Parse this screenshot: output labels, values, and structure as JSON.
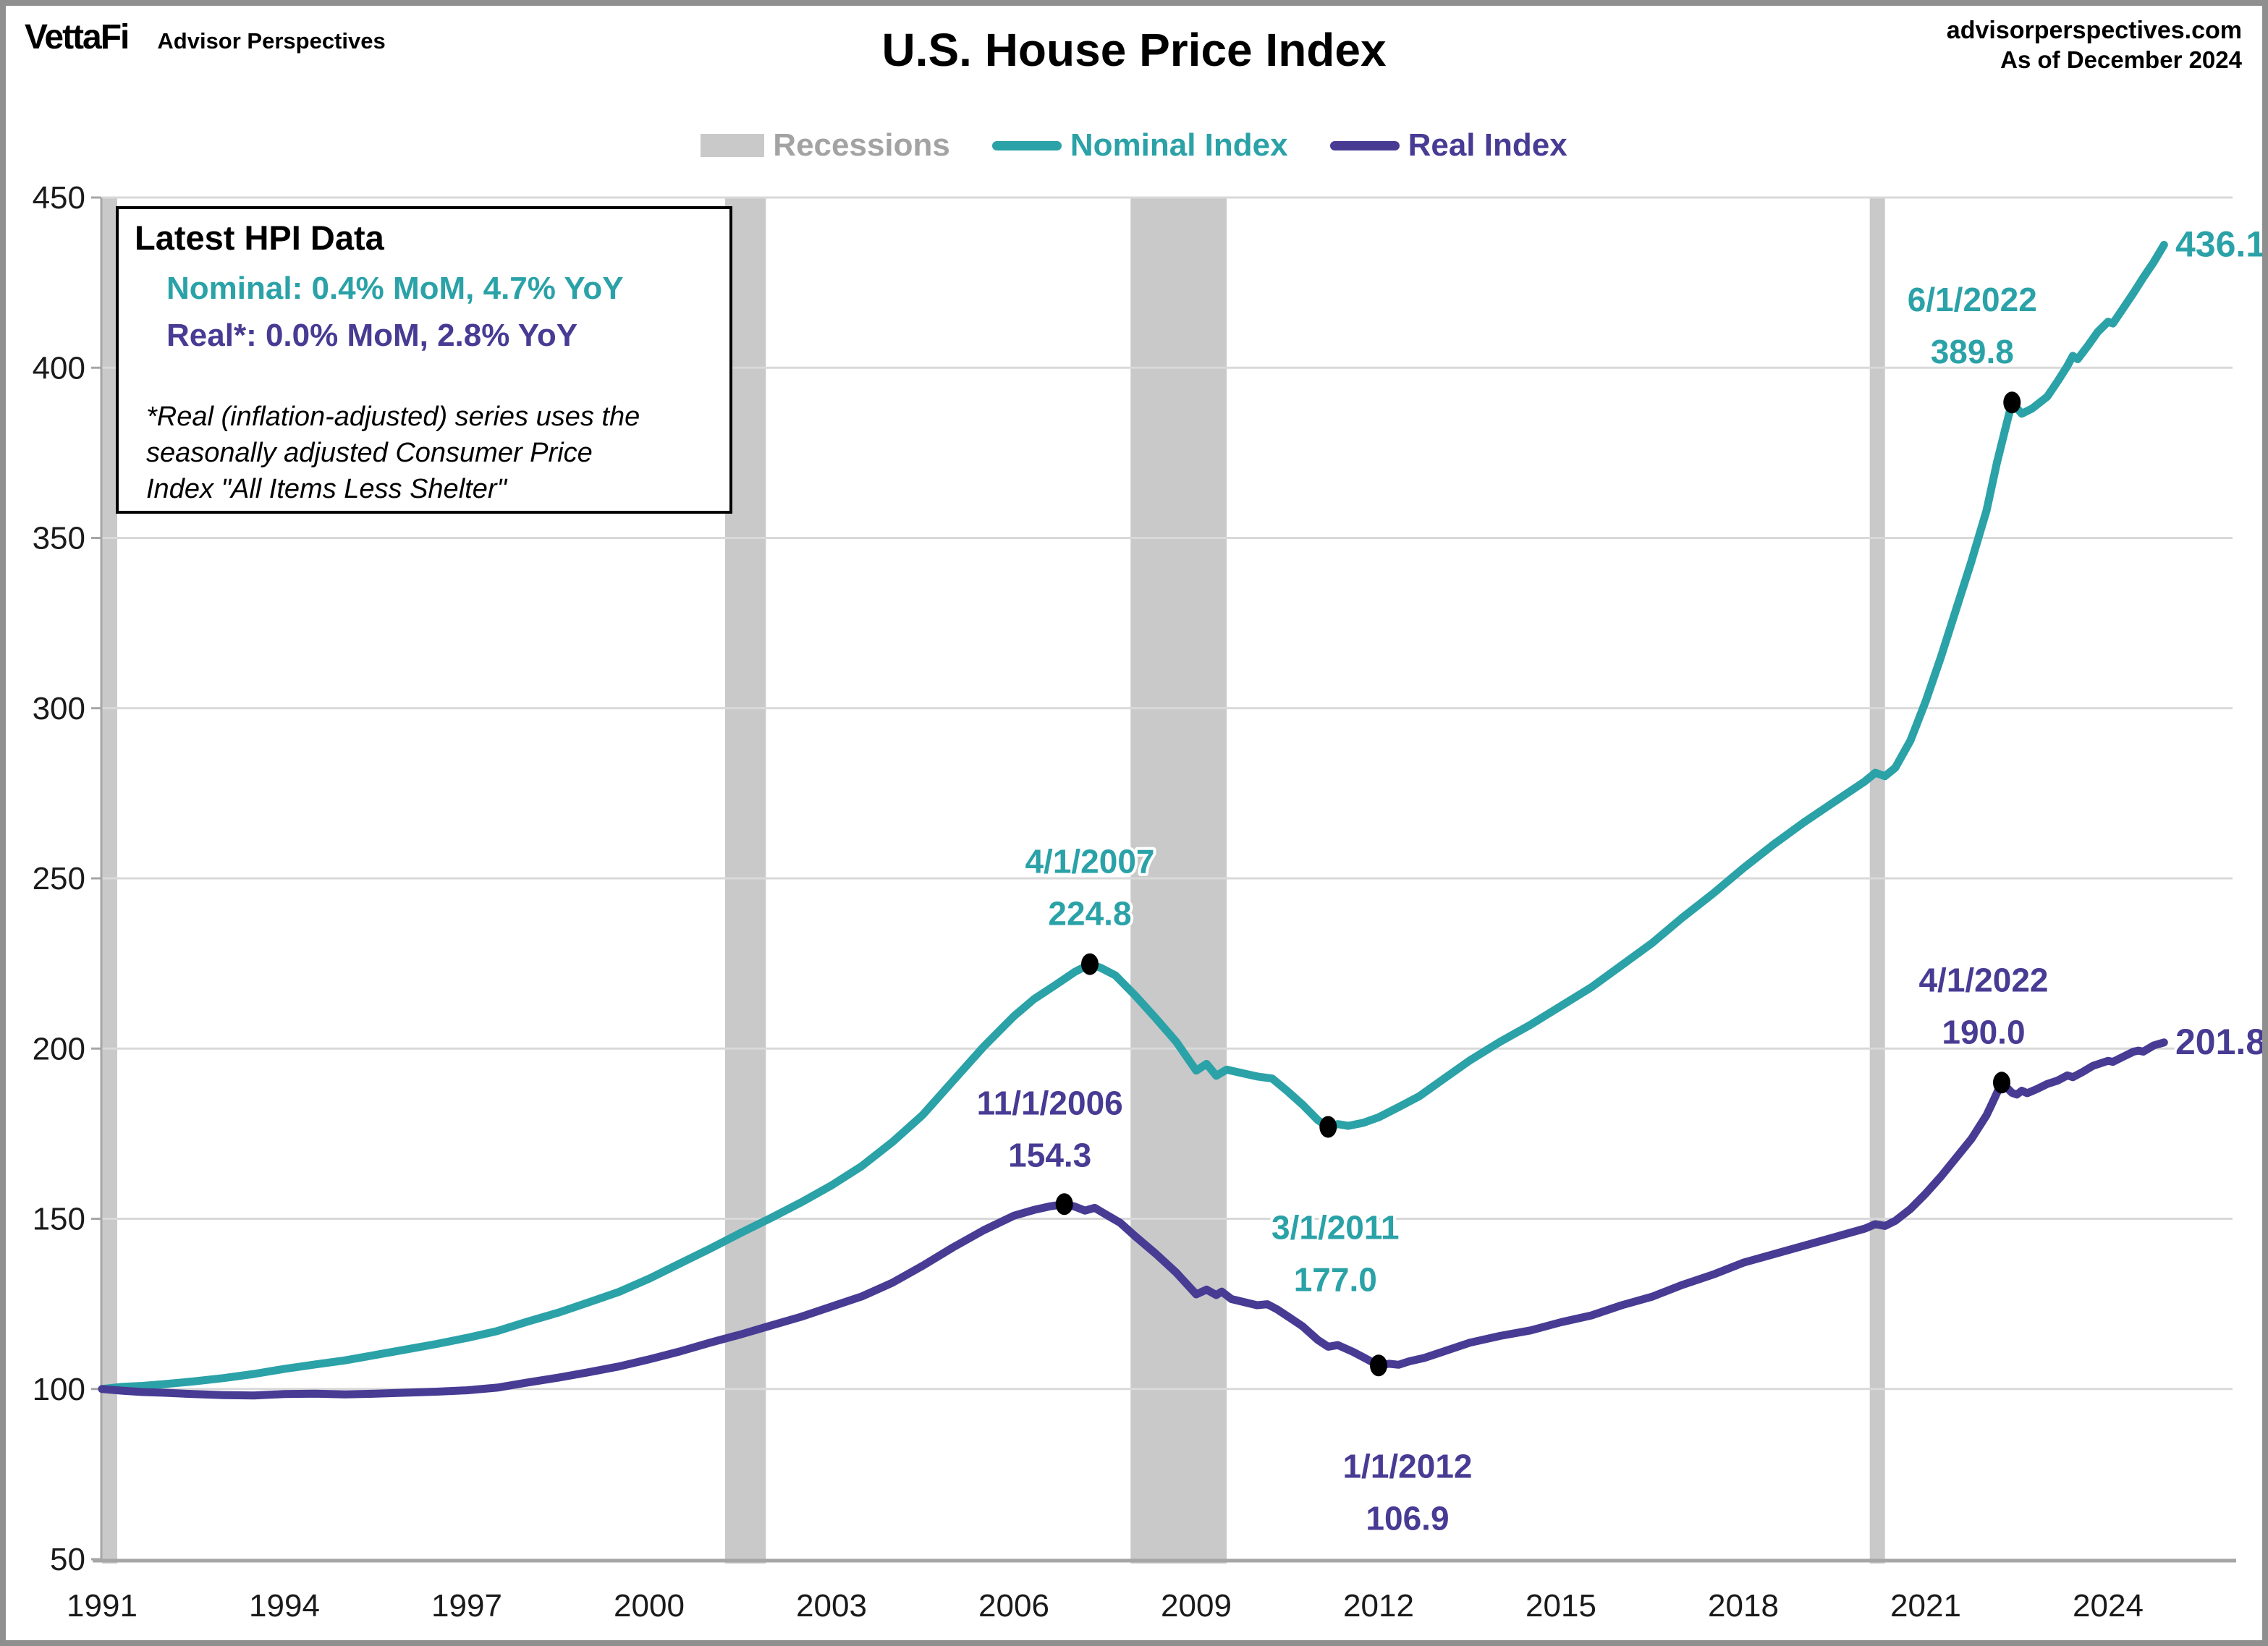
{
  "header": {
    "brand": "VettaFi",
    "brand_sub": "Advisor Perspectives",
    "title": "U.S. House Price Index",
    "source_line1": "advisorperspectives.com",
    "source_line2": "As of December 2024"
  },
  "legend": [
    {
      "label": "Recessions",
      "type": "band",
      "color": "#c9c9c9",
      "text_color": "#a3a3a3"
    },
    {
      "label": "Nominal Index",
      "type": "line",
      "color": "#2aa2a7",
      "text_color": "#2aa2a7"
    },
    {
      "label": "Real Index",
      "type": "line",
      "color": "#473b94",
      "text_color": "#473b94"
    }
  ],
  "info_box": {
    "title": "Latest HPI Data",
    "nominal_line": "Nominal:  0.4% MoM, 4.7% YoY",
    "real_line": "Real*:  0.0% MoM, 2.8% YoY",
    "footnote_line1": "*Real (inflation-adjusted) series uses the",
    "footnote_line2": "seasonally adjusted Consumer Price",
    "footnote_line3": "Index \"All Items Less Shelter\""
  },
  "chart_data": {
    "type": "line",
    "title": "U.S. House Price Index",
    "xlabel": "",
    "ylabel": "",
    "x_axis": {
      "range": [
        1991,
        2024.9167
      ],
      "ticks": [
        1991,
        1994,
        1997,
        2000,
        2003,
        2006,
        2009,
        2012,
        2015,
        2018,
        2021,
        2024
      ]
    },
    "y_axis": {
      "range": [
        50,
        450
      ],
      "ticks": [
        50,
        100,
        150,
        200,
        250,
        300,
        350,
        400,
        450
      ],
      "gridlines": true
    },
    "colors": {
      "grid": "#d9d9d9",
      "axis": "#a6a6a6",
      "recession_band": "#c9c9c9",
      "tick_label": "#1a1a1a",
      "marker": "#000000"
    },
    "recessions": [
      {
        "start": 1991.0,
        "end": 1991.25
      },
      {
        "start": 2001.25,
        "end": 2001.92
      },
      {
        "start": 2007.92,
        "end": 2009.5
      },
      {
        "start": 2020.08,
        "end": 2020.33
      }
    ],
    "series": [
      {
        "name": "Nominal Index",
        "color": "#2aa2a7",
        "points": [
          [
            1991.0,
            100
          ],
          [
            1991.33,
            100.6
          ],
          [
            1991.67,
            100.9
          ],
          [
            1992.0,
            101.4
          ],
          [
            1992.5,
            102.2
          ],
          [
            1993.0,
            103.2
          ],
          [
            1993.5,
            104.4
          ],
          [
            1994.0,
            105.9
          ],
          [
            1994.5,
            107.2
          ],
          [
            1995.0,
            108.4
          ],
          [
            1995.5,
            110.0
          ],
          [
            1996.0,
            111.6
          ],
          [
            1996.5,
            113.2
          ],
          [
            1997.0,
            115.0
          ],
          [
            1997.5,
            117.0
          ],
          [
            1998.0,
            119.8
          ],
          [
            1998.5,
            122.4
          ],
          [
            1999.0,
            125.4
          ],
          [
            1999.5,
            128.5
          ],
          [
            2000.0,
            132.4
          ],
          [
            2000.5,
            136.8
          ],
          [
            2001.0,
            141.2
          ],
          [
            2001.5,
            145.8
          ],
          [
            2002.0,
            150.2
          ],
          [
            2002.5,
            154.8
          ],
          [
            2003.0,
            159.8
          ],
          [
            2003.5,
            165.5
          ],
          [
            2004.0,
            172.5
          ],
          [
            2004.5,
            180.5
          ],
          [
            2005.0,
            190.5
          ],
          [
            2005.5,
            200.5
          ],
          [
            2006.0,
            209.5
          ],
          [
            2006.33,
            214.5
          ],
          [
            2006.67,
            218.5
          ],
          [
            2007.0,
            222.5
          ],
          [
            2007.25,
            224.8
          ],
          [
            2007.42,
            223.8
          ],
          [
            2007.67,
            221.5
          ],
          [
            2008.0,
            215.5
          ],
          [
            2008.33,
            209.0
          ],
          [
            2008.67,
            202.0
          ],
          [
            2009.0,
            193.5
          ],
          [
            2009.17,
            195.5
          ],
          [
            2009.33,
            192.0
          ],
          [
            2009.5,
            193.8
          ],
          [
            2009.75,
            192.8
          ],
          [
            2010.0,
            191.8
          ],
          [
            2010.25,
            191.2
          ],
          [
            2010.5,
            187.5
          ],
          [
            2010.75,
            183.5
          ],
          [
            2011.0,
            179.0
          ],
          [
            2011.17,
            177.0
          ],
          [
            2011.33,
            177.8
          ],
          [
            2011.5,
            177.3
          ],
          [
            2011.75,
            178.2
          ],
          [
            2012.0,
            179.8
          ],
          [
            2012.33,
            182.8
          ],
          [
            2012.67,
            186.0
          ],
          [
            2013.0,
            190.2
          ],
          [
            2013.5,
            196.5
          ],
          [
            2014.0,
            202.0
          ],
          [
            2014.5,
            207.0
          ],
          [
            2015.0,
            212.5
          ],
          [
            2015.5,
            218.0
          ],
          [
            2016.0,
            224.5
          ],
          [
            2016.5,
            231.0
          ],
          [
            2017.0,
            238.5
          ],
          [
            2017.5,
            245.5
          ],
          [
            2018.0,
            253.0
          ],
          [
            2018.5,
            260.0
          ],
          [
            2019.0,
            266.5
          ],
          [
            2019.5,
            272.5
          ],
          [
            2020.0,
            278.5
          ],
          [
            2020.17,
            281.0
          ],
          [
            2020.33,
            280.0
          ],
          [
            2020.5,
            282.5
          ],
          [
            2020.75,
            290.5
          ],
          [
            2021.0,
            302.0
          ],
          [
            2021.25,
            315.0
          ],
          [
            2021.5,
            329.0
          ],
          [
            2021.75,
            343.0
          ],
          [
            2022.0,
            358.0
          ],
          [
            2022.17,
            372.0
          ],
          [
            2022.33,
            383.5
          ],
          [
            2022.42,
            389.8
          ],
          [
            2022.58,
            386.5
          ],
          [
            2022.75,
            388.0
          ],
          [
            2023.0,
            391.5
          ],
          [
            2023.17,
            396.0
          ],
          [
            2023.33,
            400.5
          ],
          [
            2023.42,
            403.5
          ],
          [
            2023.5,
            402.5
          ],
          [
            2023.67,
            406.5
          ],
          [
            2023.83,
            410.5
          ],
          [
            2024.0,
            413.5
          ],
          [
            2024.08,
            413.0
          ],
          [
            2024.25,
            417.5
          ],
          [
            2024.42,
            422.0
          ],
          [
            2024.58,
            426.5
          ],
          [
            2024.75,
            431.0
          ],
          [
            2024.92,
            436.1
          ]
        ]
      },
      {
        "name": "Real Index",
        "color": "#473b94",
        "points": [
          [
            1991.0,
            100
          ],
          [
            1991.33,
            99.5
          ],
          [
            1991.67,
            99.1
          ],
          [
            1992.0,
            98.9
          ],
          [
            1992.5,
            98.5
          ],
          [
            1993.0,
            98.2
          ],
          [
            1993.5,
            98.1
          ],
          [
            1994.0,
            98.5
          ],
          [
            1994.5,
            98.6
          ],
          [
            1995.0,
            98.4
          ],
          [
            1995.5,
            98.6
          ],
          [
            1996.0,
            98.9
          ],
          [
            1996.5,
            99.2
          ],
          [
            1997.0,
            99.6
          ],
          [
            1997.5,
            100.4
          ],
          [
            1998.0,
            101.9
          ],
          [
            1998.5,
            103.3
          ],
          [
            1999.0,
            104.9
          ],
          [
            1999.5,
            106.6
          ],
          [
            2000.0,
            108.7
          ],
          [
            2000.5,
            111.0
          ],
          [
            2001.0,
            113.6
          ],
          [
            2001.5,
            116.0
          ],
          [
            2002.0,
            118.6
          ],
          [
            2002.5,
            121.2
          ],
          [
            2003.0,
            124.2
          ],
          [
            2003.5,
            127.2
          ],
          [
            2004.0,
            131.2
          ],
          [
            2004.5,
            136.2
          ],
          [
            2005.0,
            141.6
          ],
          [
            2005.5,
            146.6
          ],
          [
            2006.0,
            150.9
          ],
          [
            2006.33,
            152.6
          ],
          [
            2006.58,
            153.6
          ],
          [
            2006.83,
            154.3
          ],
          [
            2007.0,
            153.6
          ],
          [
            2007.17,
            152.4
          ],
          [
            2007.33,
            153.2
          ],
          [
            2007.5,
            151.4
          ],
          [
            2007.75,
            148.8
          ],
          [
            2008.0,
            144.8
          ],
          [
            2008.33,
            139.8
          ],
          [
            2008.67,
            134.2
          ],
          [
            2009.0,
            127.8
          ],
          [
            2009.17,
            129.2
          ],
          [
            2009.33,
            127.6
          ],
          [
            2009.42,
            128.6
          ],
          [
            2009.58,
            126.4
          ],
          [
            2010.0,
            124.6
          ],
          [
            2010.17,
            124.9
          ],
          [
            2010.33,
            123.4
          ],
          [
            2010.5,
            121.4
          ],
          [
            2010.75,
            118.4
          ],
          [
            2011.0,
            114.4
          ],
          [
            2011.17,
            112.4
          ],
          [
            2011.33,
            112.9
          ],
          [
            2011.58,
            110.9
          ],
          [
            2011.75,
            109.3
          ],
          [
            2012.0,
            106.9
          ],
          [
            2012.17,
            107.4
          ],
          [
            2012.33,
            107.1
          ],
          [
            2012.5,
            108.1
          ],
          [
            2012.75,
            109.1
          ],
          [
            2013.0,
            110.6
          ],
          [
            2013.5,
            113.6
          ],
          [
            2014.0,
            115.6
          ],
          [
            2014.5,
            117.2
          ],
          [
            2015.0,
            119.6
          ],
          [
            2015.5,
            121.6
          ],
          [
            2016.0,
            124.6
          ],
          [
            2016.5,
            127.1
          ],
          [
            2017.0,
            130.6
          ],
          [
            2017.5,
            133.6
          ],
          [
            2018.0,
            137.1
          ],
          [
            2018.5,
            139.6
          ],
          [
            2019.0,
            142.1
          ],
          [
            2019.5,
            144.6
          ],
          [
            2020.0,
            147.1
          ],
          [
            2020.17,
            148.4
          ],
          [
            2020.33,
            147.9
          ],
          [
            2020.5,
            149.4
          ],
          [
            2020.75,
            152.9
          ],
          [
            2021.0,
            157.4
          ],
          [
            2021.25,
            162.4
          ],
          [
            2021.5,
            167.9
          ],
          [
            2021.75,
            173.4
          ],
          [
            2022.0,
            180.4
          ],
          [
            2022.08,
            183.4
          ],
          [
            2022.17,
            186.9
          ],
          [
            2022.25,
            190.0
          ],
          [
            2022.42,
            187.0
          ],
          [
            2022.5,
            186.5
          ],
          [
            2022.58,
            187.6
          ],
          [
            2022.67,
            186.9
          ],
          [
            2022.83,
            188.1
          ],
          [
            2023.0,
            189.6
          ],
          [
            2023.17,
            190.6
          ],
          [
            2023.33,
            192.1
          ],
          [
            2023.42,
            191.6
          ],
          [
            2023.58,
            193.1
          ],
          [
            2023.75,
            194.9
          ],
          [
            2024.0,
            196.4
          ],
          [
            2024.08,
            196.1
          ],
          [
            2024.25,
            197.6
          ],
          [
            2024.42,
            199.1
          ],
          [
            2024.5,
            199.4
          ],
          [
            2024.58,
            199.1
          ],
          [
            2024.75,
            200.9
          ],
          [
            2024.92,
            201.8
          ]
        ]
      }
    ],
    "annotations": [
      {
        "id": "nominal-peak-2007",
        "series": "Nominal Index",
        "color": "#2aa2a7",
        "x": 2007.25,
        "y": 224.8,
        "line1": "4/1/2007",
        "line2": "224.8",
        "dx": 0,
        "dy1": -126,
        "dy2": -54
      },
      {
        "id": "real-peak-2006",
        "series": "Real Index",
        "color": "#473b94",
        "x": 2006.83,
        "y": 154.3,
        "line1": "11/1/2006",
        "line2": "154.3",
        "dx": -20,
        "dy1": -124,
        "dy2": -52
      },
      {
        "id": "nominal-trough-2011",
        "series": "Nominal Index",
        "color": "#2aa2a7",
        "x": 2011.17,
        "y": 177.0,
        "line1": "3/1/2011",
        "line2": "177.0",
        "dx": 10,
        "dy1": 155,
        "dy2": 227
      },
      {
        "id": "real-trough-2012",
        "series": "Real Index",
        "color": "#473b94",
        "x": 2012.0,
        "y": 106.9,
        "line1": "1/1/2012",
        "line2": "106.9",
        "dx": 40,
        "dy1": 155,
        "dy2": 227
      },
      {
        "id": "nominal-2022",
        "series": "Nominal Index",
        "color": "#2aa2a7",
        "x": 2022.42,
        "y": 389.8,
        "line1": "6/1/2022",
        "line2": "389.8",
        "dx": -55,
        "dy1": -126,
        "dy2": -54
      },
      {
        "id": "real-2022",
        "series": "Real Index",
        "color": "#473b94",
        "x": 2022.25,
        "y": 190.0,
        "line1": "4/1/2022",
        "line2": "190.0",
        "dx": -25,
        "dy1": -126,
        "dy2": -54
      }
    ],
    "end_labels": [
      {
        "id": "nominal-latest",
        "text": "436.1",
        "color": "#2aa2a7",
        "y": 436.1
      },
      {
        "id": "real-latest",
        "text": "201.8",
        "color": "#473b94",
        "y": 201.8
      }
    ]
  }
}
